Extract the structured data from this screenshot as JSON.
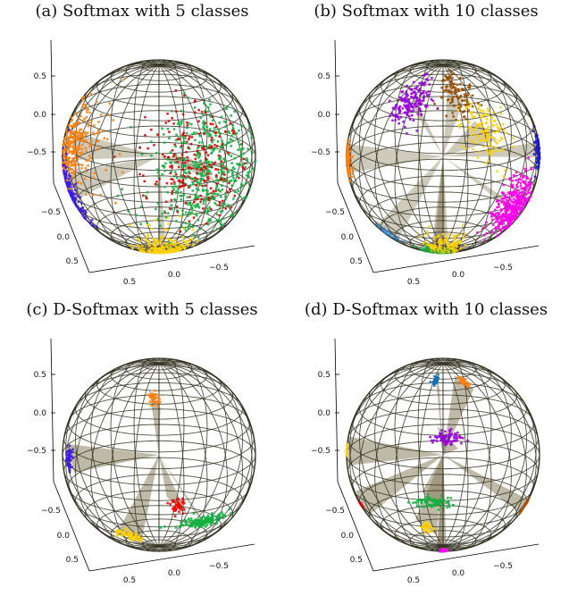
{
  "figure": {
    "panels": [
      {
        "id": "a",
        "title": "(a) Softmax with 5 classes",
        "style": "scatter",
        "clusters": [
          {
            "color": "#ff7f0e",
            "lat": 0.25,
            "lon": -1.15,
            "n": 260,
            "spread": 0.23
          },
          {
            "color": "#3d1be0",
            "lat": -0.3,
            "lon": -1.42,
            "n": 190,
            "spread": 0.2
          },
          {
            "color": "#ffd000",
            "lat": -1.1,
            "lon": 0.1,
            "n": 280,
            "spread": 0.28
          },
          {
            "color": "#11b340",
            "lat": 0.08,
            "lon": 0.55,
            "n": 460,
            "spread": 0.34
          },
          {
            "color": "#e00000",
            "lat": 0.18,
            "lon": 0.45,
            "n": 220,
            "spread": 0.3
          }
        ]
      },
      {
        "id": "b",
        "title": "(b) Softmax with 10 classes",
        "style": "scatter",
        "clusters": [
          {
            "color": "#ff7f0e",
            "lat": 0.0,
            "lon": -1.5,
            "n": 90,
            "spread": 0.13
          },
          {
            "color": "#2f88d8",
            "lat": -0.95,
            "lon": -1.45,
            "n": 60,
            "spread": 0.09
          },
          {
            "color": "#9900e0",
            "lat": 0.9,
            "lon": -0.55,
            "n": 170,
            "spread": 0.14
          },
          {
            "color": "#994c00",
            "lat": 1.05,
            "lon": 0.25,
            "n": 110,
            "spread": 0.16
          },
          {
            "color": "#ffd000",
            "lat": 0.55,
            "lon": 0.55,
            "n": 130,
            "spread": 0.16
          },
          {
            "color": "#1a1acc",
            "lat": 0.1,
            "lon": 1.48,
            "n": 90,
            "spread": 0.1
          },
          {
            "color": "#ff00ee",
            "lat": -0.38,
            "lon": 0.9,
            "n": 380,
            "spread": 0.17
          },
          {
            "color": "#ffd000",
            "lat": -0.95,
            "lon": 0.0,
            "n": 160,
            "spread": 0.17
          },
          {
            "color": "#11b340",
            "lat": -1.2,
            "lon": -0.15,
            "n": 150,
            "spread": 0.16
          },
          {
            "color": "#444444",
            "lat": -1.05,
            "lon": -0.05,
            "n": 20,
            "spread": 0.12
          }
        ]
      },
      {
        "id": "c",
        "title": "(c) D-Softmax with 5 classes",
        "style": "collapsed",
        "clusters": [
          {
            "color": "#ff7f0e",
            "lat": 0.95,
            "lon": -0.1,
            "n": 40,
            "spread": 0.05
          },
          {
            "color": "#3d1be0",
            "lat": 0.08,
            "lon": -1.2,
            "n": 55,
            "spread": 0.05
          },
          {
            "color": "#ff0000",
            "lat": -0.25,
            "lon": 0.2,
            "n": 50,
            "spread": 0.04
          },
          {
            "color": "#11b340",
            "lat": -0.5,
            "lon": 0.55,
            "n": 140,
            "spread": 0.04,
            "stretch": 4
          },
          {
            "color": "#ffd000",
            "lat": -0.72,
            "lon": -0.4,
            "n": 60,
            "spread": 0.05,
            "stretch": 2
          }
        ]
      },
      {
        "id": "d",
        "title": "(d) D-Softmax with 10 classes",
        "style": "collapsed",
        "clusters": [
          {
            "color": "#1a6fb5",
            "lat": 1.2,
            "lon": -0.2,
            "n": 40,
            "spread": 0.04
          },
          {
            "color": "#ff7f0e",
            "lat": 1.15,
            "lon": 0.55,
            "n": 35,
            "spread": 0.05
          },
          {
            "color": "#ffd000",
            "lat": 0.05,
            "lon": -1.55,
            "n": 25,
            "spread": 0.04
          },
          {
            "color": "#9900e0",
            "lat": 0.5,
            "lon": 0.05,
            "n": 70,
            "spread": 0.04,
            "stretch": 2.5
          },
          {
            "color": "#11b340",
            "lat": -0.2,
            "lon": -0.1,
            "n": 80,
            "spread": 0.04,
            "stretch": 3
          },
          {
            "color": "#ffd000",
            "lat": -0.55,
            "lon": -0.2,
            "n": 30,
            "spread": 0.04
          },
          {
            "color": "#b54d00",
            "lat": -0.55,
            "lon": 1.45,
            "n": 55,
            "spread": 0.05
          },
          {
            "color": "#e00000",
            "lat": -0.55,
            "lon": -1.52,
            "n": 20,
            "spread": 0.03
          },
          {
            "color": "#ff00ee",
            "lat": -1.15,
            "lon": 0.0,
            "n": 60,
            "spread": 0.05
          },
          {
            "color": "#1a1acc",
            "lat": -1.3,
            "lon": -0.05,
            "n": 20,
            "spread": 0.04
          }
        ]
      }
    ],
    "axes": {
      "z_ticks": [
        "0.5",
        "0.0",
        "−0.5"
      ],
      "x_ticks": [
        "−0.5",
        "0.0",
        "0.5"
      ],
      "y_ticks": [
        "0.5",
        "0.0",
        "−0.5"
      ]
    },
    "colors": {
      "wire": "#333322",
      "cone": "#8a8060",
      "axis": "#000000"
    }
  }
}
